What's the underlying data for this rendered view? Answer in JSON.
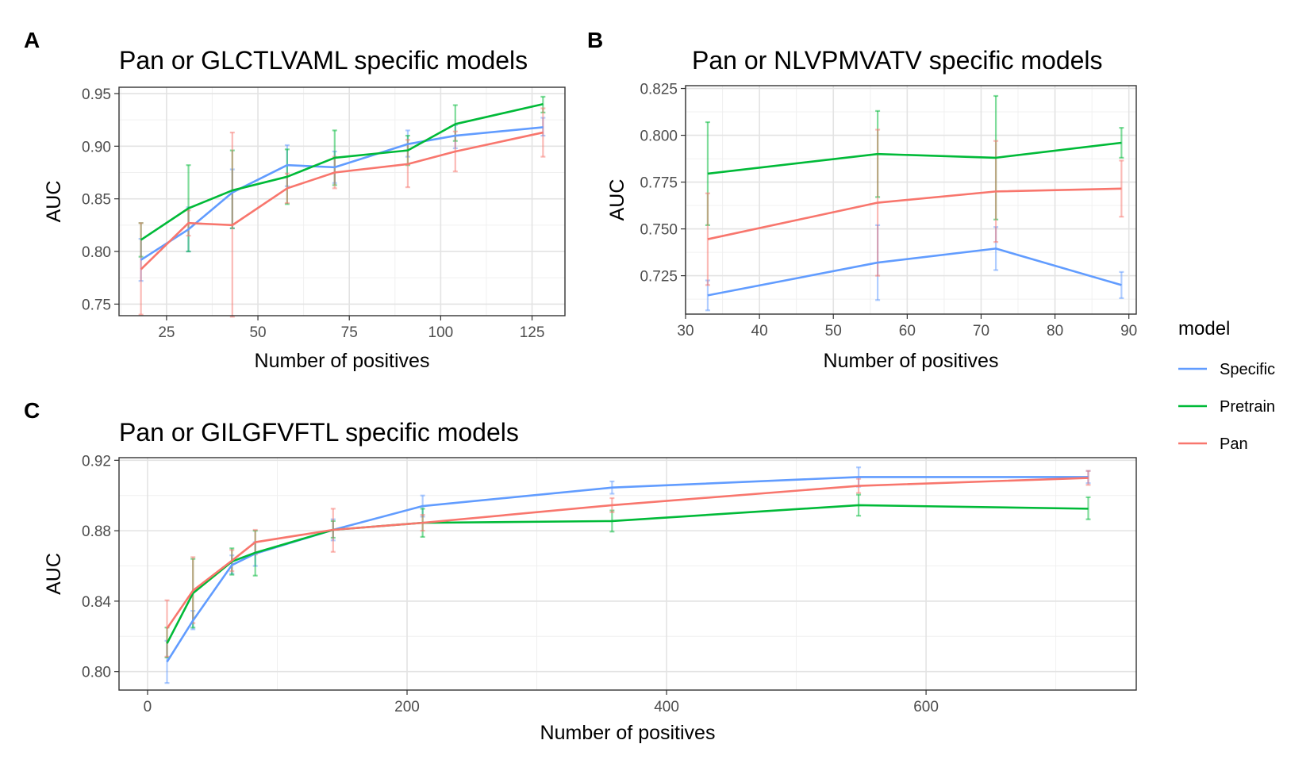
{
  "panels": [
    {
      "letter": "A"
    },
    {
      "letter": "B"
    },
    {
      "letter": "C"
    }
  ],
  "legend": {
    "title": "model",
    "items": [
      {
        "label": "Specific",
        "color": "#619CFF"
      },
      {
        "label": "Pretrain",
        "color": "#00BA38"
      },
      {
        "label": "Pan",
        "color": "#F8766D"
      }
    ]
  },
  "chart_data": [
    {
      "type": "line",
      "title": "Pan or GLCTLVAML specific models",
      "xlabel": "Number of positives",
      "ylabel": "AUC",
      "xlim": [
        12,
        134
      ],
      "ylim": [
        0.739,
        0.956
      ],
      "xticks": [
        25,
        50,
        75,
        100,
        125
      ],
      "xtick_labels": [
        "25",
        "50",
        "75",
        "100",
        "125"
      ],
      "yticks": [
        0.75,
        0.8,
        0.85,
        0.9,
        0.95
      ],
      "ytick_labels": [
        "0.75",
        "0.80",
        "0.85",
        "0.90",
        "0.95"
      ],
      "grid": true,
      "legend_position": "right",
      "error_bars": true,
      "x": [
        18,
        31,
        43,
        58,
        71,
        91,
        104,
        128
      ],
      "series": [
        {
          "name": "Specific",
          "color": "#619CFF",
          "values": [
            0.792,
            0.821,
            0.856,
            0.882,
            0.88,
            0.902,
            0.91,
            0.918
          ],
          "lower": [
            0.772,
            0.8,
            0.822,
            0.862,
            0.865,
            0.89,
            0.898,
            0.91
          ],
          "upper": [
            0.812,
            0.842,
            0.878,
            0.901,
            0.895,
            0.915,
            0.92,
            0.927
          ]
        },
        {
          "name": "Pretrain",
          "color": "#00BA38",
          "values": [
            0.811,
            0.841,
            0.858,
            0.871,
            0.889,
            0.896,
            0.921,
            0.94
          ],
          "lower": [
            0.795,
            0.8,
            0.822,
            0.845,
            0.863,
            0.882,
            0.905,
            0.932
          ],
          "upper": [
            0.827,
            0.882,
            0.896,
            0.897,
            0.915,
            0.91,
            0.939,
            0.947
          ]
        },
        {
          "name": "Pan",
          "color": "#F8766D",
          "values": [
            0.783,
            0.827,
            0.825,
            0.86,
            0.875,
            0.883,
            0.895,
            0.913
          ],
          "lower": [
            0.74,
            0.815,
            0.738,
            0.846,
            0.86,
            0.861,
            0.876,
            0.89
          ],
          "upper": [
            0.827,
            0.839,
            0.913,
            0.874,
            0.89,
            0.906,
            0.914,
            0.936
          ]
        }
      ]
    },
    {
      "type": "line",
      "title": "Pan or NLVPMVATV specific models",
      "xlabel": "Number of positives",
      "ylabel": "AUC",
      "xlim": [
        30,
        91
      ],
      "ylim": [
        0.7045,
        0.8265
      ],
      "xticks": [
        30,
        40,
        50,
        60,
        70,
        80,
        90
      ],
      "xtick_labels": [
        "30",
        "40",
        "50",
        "60",
        "70",
        "80",
        "90"
      ],
      "yticks": [
        0.725,
        0.75,
        0.775,
        0.8,
        0.825
      ],
      "ytick_labels": [
        "0.725",
        "0.750",
        "0.775",
        "0.800",
        "0.825"
      ],
      "grid": true,
      "legend_position": "right",
      "error_bars": true,
      "x": [
        33,
        56,
        72,
        89
      ],
      "series": [
        {
          "name": "Specific",
          "color": "#619CFF",
          "values": [
            0.7145,
            0.732,
            0.7395,
            0.72
          ],
          "lower": [
            0.7065,
            0.712,
            0.728,
            0.713
          ],
          "upper": [
            0.7225,
            0.752,
            0.751,
            0.727
          ]
        },
        {
          "name": "Pretrain",
          "color": "#00BA38",
          "values": [
            0.7795,
            0.79,
            0.788,
            0.796
          ],
          "lower": [
            0.752,
            0.767,
            0.755,
            0.788
          ],
          "upper": [
            0.807,
            0.813,
            0.821,
            0.804
          ]
        },
        {
          "name": "Pan",
          "color": "#F8766D",
          "values": [
            0.7445,
            0.764,
            0.77,
            0.7715
          ],
          "lower": [
            0.72,
            0.725,
            0.743,
            0.7565
          ],
          "upper": [
            0.769,
            0.803,
            0.797,
            0.7865
          ]
        }
      ]
    },
    {
      "type": "line",
      "title": "Pan or GILGFVFTL specific models",
      "xlabel": "Number of positives",
      "ylabel": "AUC",
      "xlim": [
        -22,
        762
      ],
      "ylim": [
        0.7895,
        0.9215
      ],
      "xticks": [
        0,
        200,
        400,
        600
      ],
      "xtick_labels": [
        "0",
        "200",
        "400",
        "600"
      ],
      "yticks": [
        0.8,
        0.84,
        0.88,
        0.92
      ],
      "ytick_labels": [
        "0.80",
        "0.84",
        "0.88",
        "0.92"
      ],
      "grid": true,
      "legend_position": "right",
      "error_bars": true,
      "x": [
        15,
        35,
        65,
        83,
        143,
        212,
        358,
        548,
        725
      ],
      "series": [
        {
          "name": "Specific",
          "color": "#619CFF",
          "values": [
            0.8055,
            0.829,
            0.8605,
            0.867,
            0.8805,
            0.894,
            0.9045,
            0.9105,
            0.9105
          ],
          "lower": [
            0.7935,
            0.824,
            0.8555,
            0.86,
            0.8745,
            0.888,
            0.901,
            0.905,
            0.907
          ],
          "upper": [
            0.8175,
            0.8345,
            0.866,
            0.8735,
            0.8865,
            0.9,
            0.908,
            0.916,
            0.914
          ]
        },
        {
          "name": "Pretrain",
          "color": "#00BA38",
          "values": [
            0.816,
            0.8445,
            0.8625,
            0.8675,
            0.8805,
            0.8845,
            0.8855,
            0.8945,
            0.8925
          ],
          "lower": [
            0.808,
            0.825,
            0.855,
            0.8545,
            0.876,
            0.8765,
            0.8795,
            0.8885,
            0.8865
          ],
          "upper": [
            0.825,
            0.864,
            0.87,
            0.88,
            0.8855,
            0.8925,
            0.8915,
            0.9005,
            0.899
          ]
        },
        {
          "name": "Pan",
          "color": "#F8766D",
          "values": [
            0.8245,
            0.846,
            0.863,
            0.8735,
            0.8805,
            0.8845,
            0.8945,
            0.9055,
            0.91
          ],
          "lower": [
            0.8085,
            0.8275,
            0.857,
            0.8665,
            0.868,
            0.88,
            0.8905,
            0.9015,
            0.906
          ],
          "upper": [
            0.8405,
            0.865,
            0.869,
            0.8805,
            0.8925,
            0.889,
            0.8985,
            0.9095,
            0.914
          ]
        }
      ]
    }
  ]
}
